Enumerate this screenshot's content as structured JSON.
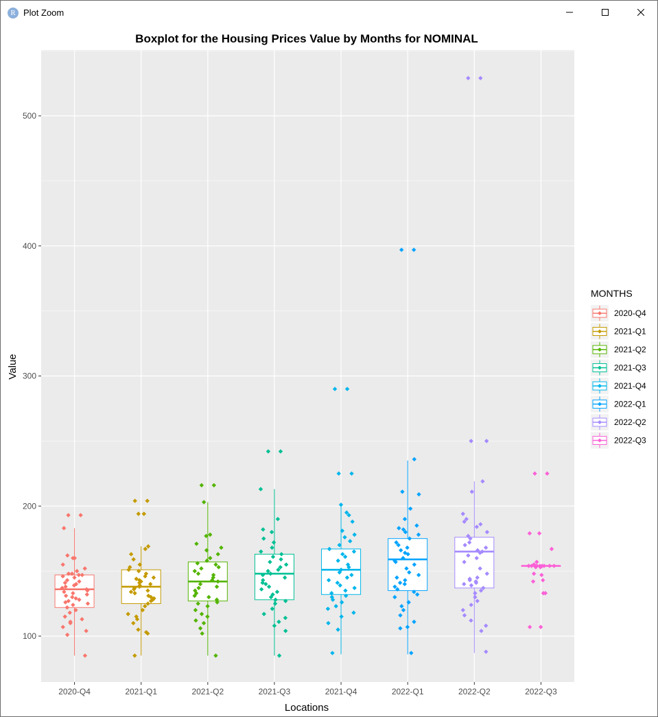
{
  "window": {
    "title": "Plot Zoom",
    "icon_letter": "R",
    "icon": "r-logo-icon",
    "buttons": [
      "minimize-icon",
      "maximize-icon",
      "close-icon"
    ]
  },
  "chart_data": {
    "type": "boxplot",
    "title": "Boxplot for the Housing Prices Value by Months for NOMINAL",
    "xlabel": "Locations",
    "ylabel": "Value",
    "ylim": [
      65,
      550
    ],
    "yticks": [
      100,
      200,
      300,
      400,
      500
    ],
    "grid": true,
    "panel_background": "#ebebeb",
    "legend": {
      "title": "MONTHS",
      "placement": "right",
      "entries": [
        "2020-Q4",
        "2021-Q1",
        "2021-Q2",
        "2021-Q3",
        "2021-Q4",
        "2022-Q1",
        "2022-Q2",
        "2022-Q3"
      ]
    },
    "categories": [
      "2020-Q4",
      "2021-Q1",
      "2021-Q2",
      "2021-Q3",
      "2021-Q4",
      "2022-Q1",
      "2022-Q2",
      "2022-Q3"
    ],
    "series": [
      {
        "name": "2020-Q4",
        "color": "#F8766D",
        "box": {
          "min": 85,
          "q1": 122,
          "median": 136,
          "q3": 147,
          "max": 183
        },
        "points": [
          193,
          193,
          183,
          162,
          160,
          160,
          155,
          152,
          150,
          148,
          148,
          147,
          147,
          146,
          145,
          143,
          142,
          141,
          140,
          139,
          138,
          137,
          136,
          135,
          134,
          133,
          132,
          131,
          130,
          129,
          128,
          127,
          126,
          125,
          124,
          122,
          120,
          118,
          115,
          113,
          111,
          110,
          107,
          104,
          101,
          85
        ]
      },
      {
        "name": "2021-Q1",
        "color": "#C49A00",
        "box": {
          "min": 85,
          "q1": 125,
          "median": 138,
          "q3": 151,
          "max": 169
        },
        "points": [
          204,
          204,
          194,
          194,
          169,
          167,
          163,
          159,
          155,
          153,
          151,
          150,
          148,
          146,
          145,
          144,
          143,
          142,
          141,
          140,
          139,
          138,
          137,
          136,
          135,
          134,
          133,
          131,
          130,
          129,
          128,
          127,
          125,
          123,
          120,
          117,
          115,
          113,
          110,
          105,
          103,
          102,
          85
        ]
      },
      {
        "name": "2021-Q2",
        "color": "#53B400",
        "box": {
          "min": 85,
          "q1": 127,
          "median": 142,
          "q3": 157,
          "max": 203
        },
        "points": [
          216,
          216,
          203,
          178,
          177,
          171,
          168,
          166,
          163,
          160,
          158,
          156,
          155,
          153,
          152,
          150,
          148,
          147,
          145,
          143,
          142,
          140,
          138,
          137,
          135,
          133,
          131,
          130,
          128,
          126,
          125,
          123,
          120,
          117,
          115,
          112,
          110,
          106,
          102,
          85
        ]
      },
      {
        "name": "2021-Q3",
        "color": "#00C094",
        "box": {
          "min": 85,
          "q1": 128,
          "median": 148,
          "q3": 163,
          "max": 213
        },
        "points": [
          242,
          242,
          213,
          190,
          182,
          180,
          175,
          172,
          168,
          165,
          163,
          161,
          159,
          157,
          155,
          153,
          151,
          150,
          148,
          147,
          145,
          143,
          141,
          140,
          138,
          136,
          134,
          132,
          130,
          128,
          127,
          125,
          121,
          117,
          114,
          111,
          108,
          104,
          85
        ]
      },
      {
        "name": "2021-Q4",
        "color": "#00B6EB",
        "box": {
          "min": 86,
          "q1": 132,
          "median": 151,
          "q3": 167,
          "max": 201
        },
        "points": [
          290,
          290,
          225,
          225,
          201,
          195,
          193,
          188,
          181,
          178,
          176,
          173,
          170,
          167,
          165,
          163,
          161,
          158,
          155,
          153,
          151,
          149,
          147,
          145,
          143,
          141,
          139,
          137,
          135,
          133,
          131,
          130,
          128,
          126,
          123,
          121,
          118,
          115,
          110,
          105,
          87
        ]
      },
      {
        "name": "2022-Q1",
        "color": "#06A4FF",
        "box": {
          "min": 86,
          "q1": 135,
          "median": 159,
          "q3": 175,
          "max": 235
        },
        "points": [
          397,
          397,
          236,
          211,
          209,
          198,
          190,
          185,
          183,
          182,
          180,
          178,
          175,
          172,
          170,
          168,
          166,
          164,
          163,
          160,
          158,
          157,
          155,
          152,
          149,
          147,
          145,
          143,
          141,
          140,
          138,
          136,
          134,
          132,
          130,
          126,
          123,
          120,
          116,
          111,
          107,
          106,
          87
        ]
      },
      {
        "name": "2022-Q2",
        "color": "#A58AFF",
        "box": {
          "min": 87,
          "q1": 137,
          "median": 165,
          "q3": 176,
          "max": 219
        },
        "points": [
          529,
          529,
          250,
          250,
          219,
          211,
          194,
          190,
          188,
          186,
          184,
          180,
          177,
          175,
          172,
          170,
          168,
          166,
          165,
          164,
          162,
          160,
          157,
          152,
          148,
          145,
          144,
          143,
          142,
          141,
          140,
          139,
          137,
          135,
          133,
          130,
          127,
          124,
          120,
          116,
          112,
          108,
          104,
          88
        ]
      },
      {
        "name": "2022-Q3",
        "color": "#FB61D7",
        "box": {
          "min": 154,
          "q1": 154,
          "median": 154,
          "q3": 154,
          "max": 154
        },
        "points": [
          225,
          225,
          179,
          179,
          167,
          157,
          155,
          155,
          154,
          154,
          154,
          154,
          154,
          154,
          154,
          154,
          154,
          154,
          153,
          153,
          148,
          147,
          143,
          142,
          133,
          133,
          107,
          107
        ]
      }
    ]
  }
}
